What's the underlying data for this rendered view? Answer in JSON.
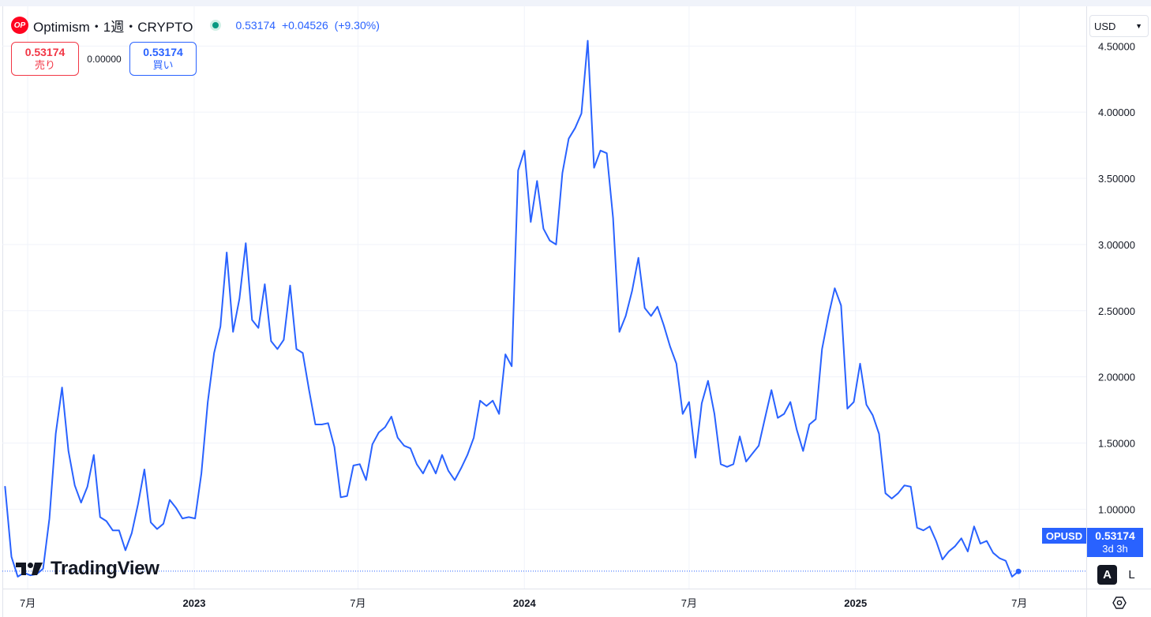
{
  "header": {
    "symbol_title": "Optimism・1週・CRYPTO",
    "logo_text": "OP",
    "last_price": "0.53174",
    "change": "+0.04526",
    "change_pct": "(+9.30%)"
  },
  "trade": {
    "sell_price": "0.53174",
    "sell_label": "売り",
    "spread": "0.00000",
    "buy_price": "0.53174",
    "buy_label": "買い"
  },
  "currency": {
    "selected": "USD"
  },
  "price_tag": {
    "ticker": "OPUSD",
    "value": "0.53174",
    "countdown": "3d 3h"
  },
  "scale_buttons": {
    "auto": "A",
    "log": "L"
  },
  "branding": {
    "name": "TradingView"
  },
  "colors": {
    "line": "#2962ff",
    "sell": "#f23645",
    "buy": "#2962ff",
    "grid": "#f0f3fa",
    "status": "#089981"
  },
  "icons": {
    "status": "status-dot-icon",
    "currency_dropdown": "chevron-down-icon",
    "settings": "gear-icon"
  },
  "chart_data": {
    "type": "line",
    "series": [
      {
        "name": "OPUSD"
      }
    ],
    "ylim": [
      0.4,
      4.8
    ],
    "y_ticks": [
      1.0,
      1.5,
      2.0,
      2.5,
      3.0,
      3.5,
      4.0,
      4.5
    ],
    "y_tick_labels": [
      "1.00000",
      "1.50000",
      "2.00000",
      "2.50000",
      "3.00000",
      "3.50000",
      "4.00000",
      "4.50000"
    ],
    "x_range": [
      "2022-06-03",
      "2025-09-13"
    ],
    "x_ticks": [
      {
        "date": "2022-07-01",
        "label": "7月"
      },
      {
        "date": "2023-01-01",
        "label": "2023"
      },
      {
        "date": "2023-07-01",
        "label": "7月"
      },
      {
        "date": "2024-01-01",
        "label": "2024"
      },
      {
        "date": "2024-07-01",
        "label": "7月"
      },
      {
        "date": "2025-01-01",
        "label": "2025"
      },
      {
        "date": "2025-07-01",
        "label": "7月"
      }
    ],
    "last_value": 0.53174,
    "points": [
      [
        "2022-06-06",
        1.17
      ],
      [
        "2022-06-13",
        0.64
      ],
      [
        "2022-06-20",
        0.49
      ],
      [
        "2022-06-27",
        0.52
      ],
      [
        "2022-07-04",
        0.5
      ],
      [
        "2022-07-11",
        0.51
      ],
      [
        "2022-07-18",
        0.55
      ],
      [
        "2022-07-25",
        0.93
      ],
      [
        "2022-08-01",
        1.57
      ],
      [
        "2022-08-08",
        1.92
      ],
      [
        "2022-08-15",
        1.44
      ],
      [
        "2022-08-22",
        1.18
      ],
      [
        "2022-08-29",
        1.05
      ],
      [
        "2022-09-05",
        1.17
      ],
      [
        "2022-09-12",
        1.41
      ],
      [
        "2022-09-19",
        0.94
      ],
      [
        "2022-09-26",
        0.91
      ],
      [
        "2022-10-03",
        0.84
      ],
      [
        "2022-10-10",
        0.84
      ],
      [
        "2022-10-17",
        0.69
      ],
      [
        "2022-10-24",
        0.82
      ],
      [
        "2022-10-31",
        1.04
      ],
      [
        "2022-11-07",
        1.3
      ],
      [
        "2022-11-14",
        0.9
      ],
      [
        "2022-11-21",
        0.85
      ],
      [
        "2022-11-28",
        0.89
      ],
      [
        "2022-12-05",
        1.07
      ],
      [
        "2022-12-12",
        1.01
      ],
      [
        "2022-12-19",
        0.93
      ],
      [
        "2022-12-26",
        0.94
      ],
      [
        "2023-01-02",
        0.93
      ],
      [
        "2023-01-09",
        1.27
      ],
      [
        "2023-01-16",
        1.81
      ],
      [
        "2023-01-23",
        2.18
      ],
      [
        "2023-01-30",
        2.38
      ],
      [
        "2023-02-06",
        2.94
      ],
      [
        "2023-02-13",
        2.34
      ],
      [
        "2023-02-20",
        2.59
      ],
      [
        "2023-02-27",
        3.01
      ],
      [
        "2023-03-06",
        2.43
      ],
      [
        "2023-03-13",
        2.37
      ],
      [
        "2023-03-20",
        2.7
      ],
      [
        "2023-03-27",
        2.27
      ],
      [
        "2023-04-03",
        2.21
      ],
      [
        "2023-04-10",
        2.28
      ],
      [
        "2023-04-17",
        2.69
      ],
      [
        "2023-04-24",
        2.21
      ],
      [
        "2023-05-01",
        2.18
      ],
      [
        "2023-05-08",
        1.9
      ],
      [
        "2023-05-15",
        1.64
      ],
      [
        "2023-05-22",
        1.64
      ],
      [
        "2023-05-29",
        1.65
      ],
      [
        "2023-06-05",
        1.47
      ],
      [
        "2023-06-12",
        1.09
      ],
      [
        "2023-06-19",
        1.1
      ],
      [
        "2023-06-26",
        1.33
      ],
      [
        "2023-07-03",
        1.34
      ],
      [
        "2023-07-10",
        1.22
      ],
      [
        "2023-07-17",
        1.49
      ],
      [
        "2023-07-24",
        1.58
      ],
      [
        "2023-07-31",
        1.62
      ],
      [
        "2023-08-07",
        1.7
      ],
      [
        "2023-08-14",
        1.54
      ],
      [
        "2023-08-21",
        1.48
      ],
      [
        "2023-08-28",
        1.46
      ],
      [
        "2023-09-04",
        1.34
      ],
      [
        "2023-09-11",
        1.27
      ],
      [
        "2023-09-18",
        1.37
      ],
      [
        "2023-09-25",
        1.27
      ],
      [
        "2023-10-02",
        1.41
      ],
      [
        "2023-10-09",
        1.29
      ],
      [
        "2023-10-16",
        1.22
      ],
      [
        "2023-10-23",
        1.31
      ],
      [
        "2023-10-30",
        1.41
      ],
      [
        "2023-11-06",
        1.54
      ],
      [
        "2023-11-13",
        1.82
      ],
      [
        "2023-11-20",
        1.78
      ],
      [
        "2023-11-27",
        1.82
      ],
      [
        "2023-12-04",
        1.72
      ],
      [
        "2023-12-11",
        2.17
      ],
      [
        "2023-12-18",
        2.08
      ],
      [
        "2023-12-25",
        3.56
      ],
      [
        "2024-01-01",
        3.71
      ],
      [
        "2024-01-08",
        3.17
      ],
      [
        "2024-01-15",
        3.48
      ],
      [
        "2024-01-22",
        3.12
      ],
      [
        "2024-01-29",
        3.03
      ],
      [
        "2024-02-05",
        3.0
      ],
      [
        "2024-02-12",
        3.54
      ],
      [
        "2024-02-19",
        3.8
      ],
      [
        "2024-02-26",
        3.88
      ],
      [
        "2024-03-04",
        3.99
      ],
      [
        "2024-03-11",
        4.54
      ],
      [
        "2024-03-18",
        3.58
      ],
      [
        "2024-03-25",
        3.71
      ],
      [
        "2024-04-01",
        3.69
      ],
      [
        "2024-04-08",
        3.2
      ],
      [
        "2024-04-15",
        2.34
      ],
      [
        "2024-04-22",
        2.46
      ],
      [
        "2024-04-29",
        2.65
      ],
      [
        "2024-05-06",
        2.9
      ],
      [
        "2024-05-13",
        2.52
      ],
      [
        "2024-05-20",
        2.46
      ],
      [
        "2024-05-27",
        2.53
      ],
      [
        "2024-06-03",
        2.39
      ],
      [
        "2024-06-10",
        2.23
      ],
      [
        "2024-06-17",
        2.1
      ],
      [
        "2024-06-24",
        1.72
      ],
      [
        "2024-07-01",
        1.81
      ],
      [
        "2024-07-08",
        1.39
      ],
      [
        "2024-07-15",
        1.8
      ],
      [
        "2024-07-22",
        1.97
      ],
      [
        "2024-07-29",
        1.72
      ],
      [
        "2024-08-05",
        1.34
      ],
      [
        "2024-08-12",
        1.32
      ],
      [
        "2024-08-19",
        1.34
      ],
      [
        "2024-08-26",
        1.55
      ],
      [
        "2024-09-02",
        1.36
      ],
      [
        "2024-09-09",
        1.42
      ],
      [
        "2024-09-16",
        1.48
      ],
      [
        "2024-09-23",
        1.69
      ],
      [
        "2024-09-30",
        1.9
      ],
      [
        "2024-10-07",
        1.69
      ],
      [
        "2024-10-14",
        1.72
      ],
      [
        "2024-10-21",
        1.81
      ],
      [
        "2024-10-28",
        1.6
      ],
      [
        "2024-11-04",
        1.44
      ],
      [
        "2024-11-11",
        1.64
      ],
      [
        "2024-11-18",
        1.68
      ],
      [
        "2024-11-25",
        2.21
      ],
      [
        "2024-12-02",
        2.46
      ],
      [
        "2024-12-09",
        2.67
      ],
      [
        "2024-12-16",
        2.54
      ],
      [
        "2024-12-23",
        1.76
      ],
      [
        "2024-12-30",
        1.81
      ],
      [
        "2025-01-06",
        2.1
      ],
      [
        "2025-01-13",
        1.79
      ],
      [
        "2025-01-20",
        1.71
      ],
      [
        "2025-01-27",
        1.57
      ],
      [
        "2025-02-03",
        1.12
      ],
      [
        "2025-02-10",
        1.08
      ],
      [
        "2025-02-17",
        1.12
      ],
      [
        "2025-02-24",
        1.18
      ],
      [
        "2025-03-03",
        1.17
      ],
      [
        "2025-03-10",
        0.86
      ],
      [
        "2025-03-17",
        0.84
      ],
      [
        "2025-03-24",
        0.87
      ],
      [
        "2025-03-31",
        0.76
      ],
      [
        "2025-04-07",
        0.62
      ],
      [
        "2025-04-14",
        0.68
      ],
      [
        "2025-04-21",
        0.72
      ],
      [
        "2025-04-28",
        0.78
      ],
      [
        "2025-05-05",
        0.68
      ],
      [
        "2025-05-12",
        0.87
      ],
      [
        "2025-05-19",
        0.74
      ],
      [
        "2025-05-26",
        0.76
      ],
      [
        "2025-06-02",
        0.67
      ],
      [
        "2025-06-09",
        0.63
      ],
      [
        "2025-06-16",
        0.61
      ],
      [
        "2025-06-23",
        0.49
      ],
      [
        "2025-06-30",
        0.53
      ]
    ]
  }
}
